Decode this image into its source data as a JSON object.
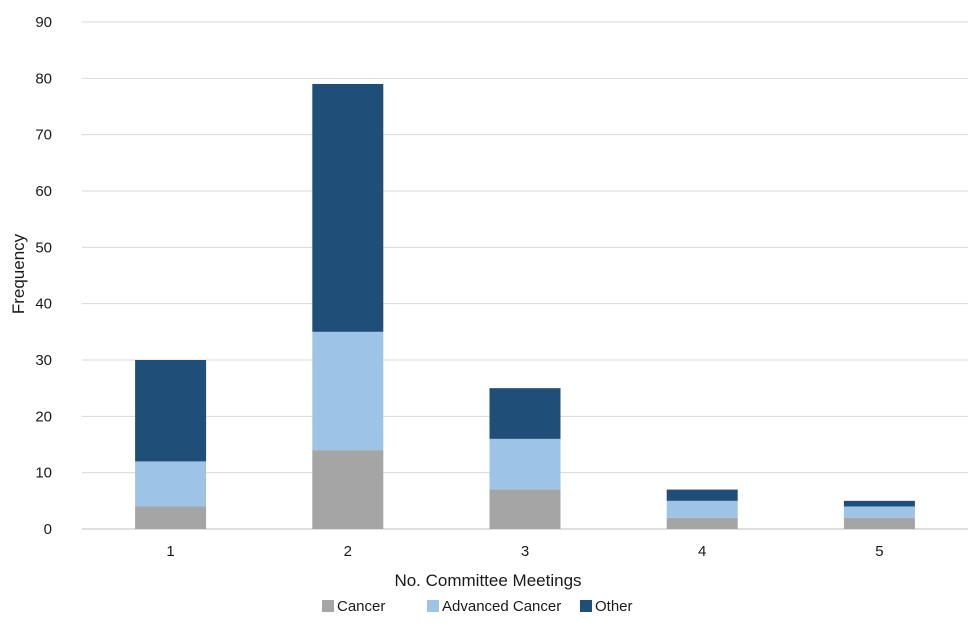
{
  "chart_data": {
    "type": "bar",
    "stacked": true,
    "categories": [
      "1",
      "2",
      "3",
      "4",
      "5"
    ],
    "series": [
      {
        "name": "Cancer",
        "values": [
          4,
          14,
          7,
          2,
          2
        ],
        "color": "#a5a5a5"
      },
      {
        "name": "Advanced Cancer",
        "values": [
          8,
          21,
          9,
          3,
          2
        ],
        "color": "#9dc3e6"
      },
      {
        "name": "Other",
        "values": [
          18,
          44,
          9,
          2,
          1
        ],
        "color": "#1f4e79"
      }
    ],
    "title": "",
    "xlabel": "No. Committee Meetings",
    "ylabel": "Frequency",
    "ylim": [
      0,
      90
    ],
    "yticks": [
      0,
      10,
      20,
      30,
      40,
      50,
      60,
      70,
      80,
      90
    ],
    "grid": true,
    "gridline_color": "#d9d9d9",
    "legend_position": "bottom"
  }
}
